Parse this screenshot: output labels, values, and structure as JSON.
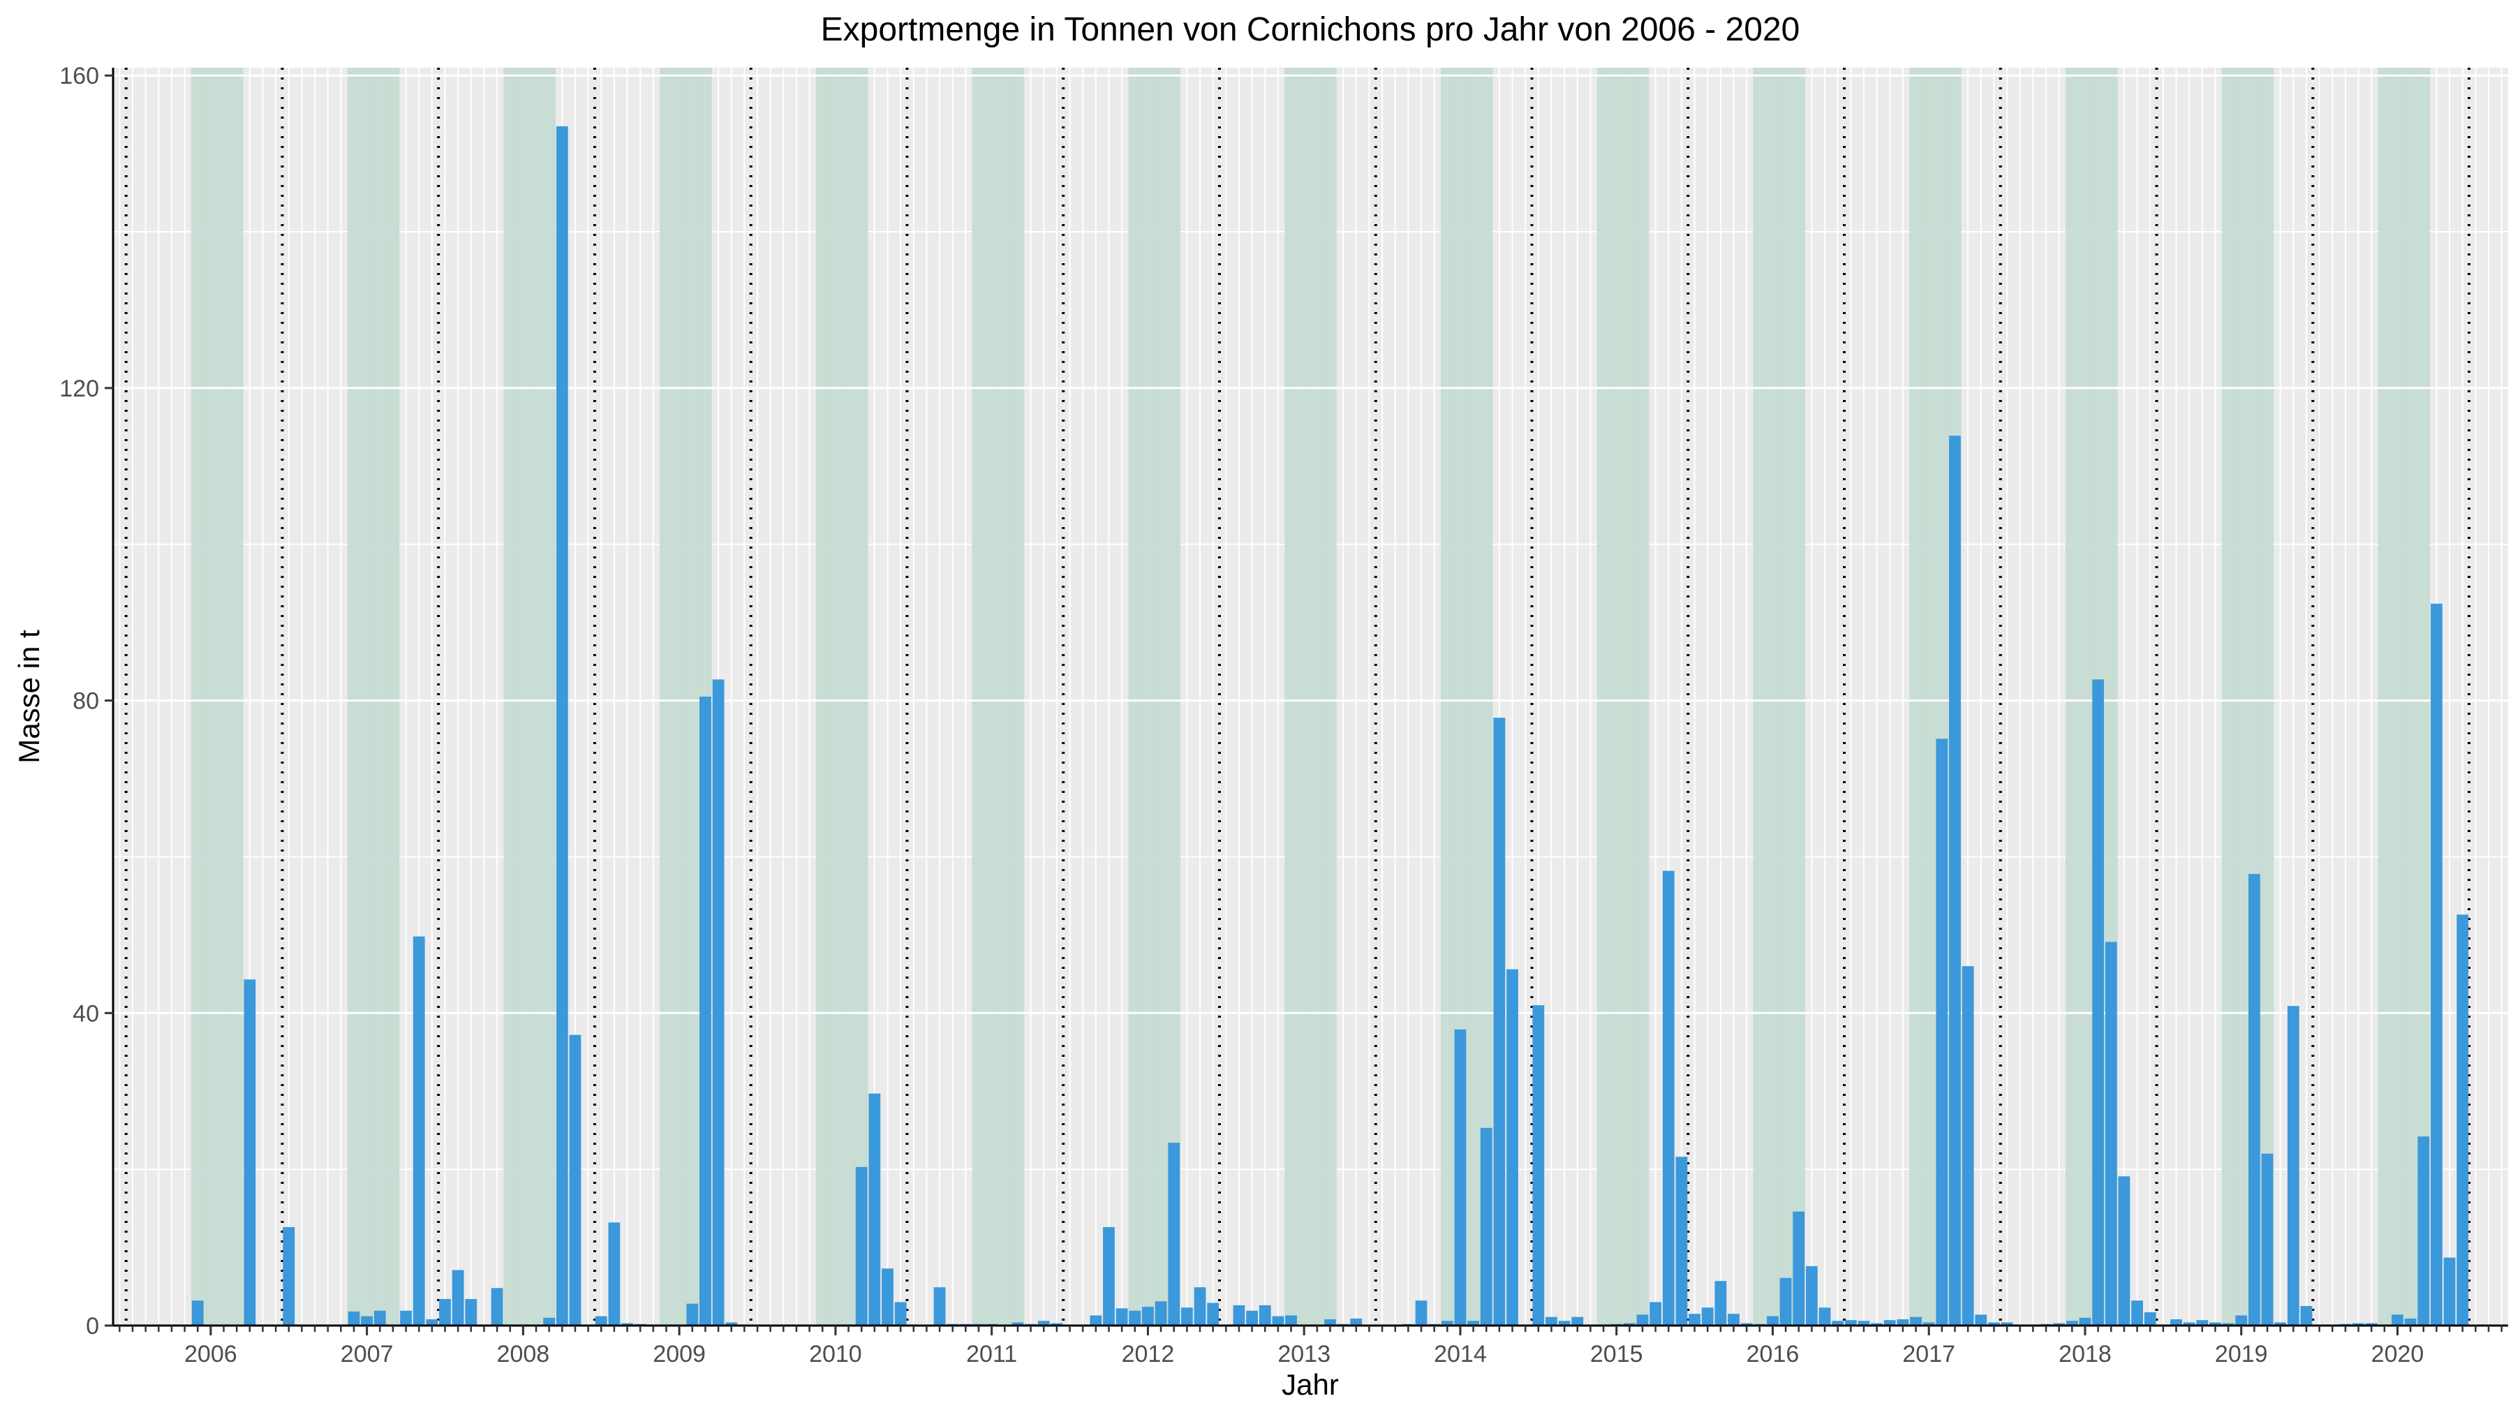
{
  "chart_data": {
    "type": "bar",
    "title": "Exportmenge in Tonnen von Cornichons pro Jahr von 2006 - 2020",
    "xlabel": "Jahr",
    "ylabel": "Masse in t",
    "ylim": [
      0,
      161
    ],
    "y_ticks": [
      0,
      40,
      80,
      120,
      160
    ],
    "x_tick_labels": [
      "2006",
      "2007",
      "2008",
      "2009",
      "2010",
      "2011",
      "2012",
      "2013",
      "2014",
      "2015",
      "2016",
      "2017",
      "2018",
      "2019",
      "2020"
    ],
    "x_start": "2005-06",
    "x_end": "2020-09",
    "interval": "month",
    "grid": true,
    "year_separator_month": "Jun/Jul",
    "highlight_months": [
      "Dec",
      "Jan",
      "Feb",
      "Mar"
    ],
    "colors": {
      "bar": "#3b98db",
      "panel": "#ebebeb",
      "grid": "#ffffff",
      "highlight": "#c4dcd0"
    },
    "x": [
      "2005-06",
      "2005-07",
      "2005-08",
      "2005-09",
      "2005-10",
      "2005-11",
      "2005-12",
      "2006-01",
      "2006-02",
      "2006-03",
      "2006-04",
      "2006-05",
      "2006-06",
      "2006-07",
      "2006-08",
      "2006-09",
      "2006-10",
      "2006-11",
      "2006-12",
      "2007-01",
      "2007-02",
      "2007-03",
      "2007-04",
      "2007-05",
      "2007-06",
      "2007-07",
      "2007-08",
      "2007-09",
      "2007-10",
      "2007-11",
      "2007-12",
      "2008-01",
      "2008-02",
      "2008-03",
      "2008-04",
      "2008-05",
      "2008-06",
      "2008-07",
      "2008-08",
      "2008-09",
      "2008-10",
      "2008-11",
      "2008-12",
      "2009-01",
      "2009-02",
      "2009-03",
      "2009-04",
      "2009-05",
      "2009-06",
      "2009-07",
      "2009-08",
      "2009-09",
      "2009-10",
      "2009-11",
      "2009-12",
      "2010-01",
      "2010-02",
      "2010-03",
      "2010-04",
      "2010-05",
      "2010-06",
      "2010-07",
      "2010-08",
      "2010-09",
      "2010-10",
      "2010-11",
      "2010-12",
      "2011-01",
      "2011-02",
      "2011-03",
      "2011-04",
      "2011-05",
      "2011-06",
      "2011-07",
      "2011-08",
      "2011-09",
      "2011-10",
      "2011-11",
      "2011-12",
      "2012-01",
      "2012-02",
      "2012-03",
      "2012-04",
      "2012-05",
      "2012-06",
      "2012-07",
      "2012-08",
      "2012-09",
      "2012-10",
      "2012-11",
      "2012-12",
      "2013-01",
      "2013-02",
      "2013-03",
      "2013-04",
      "2013-05",
      "2013-06",
      "2013-07",
      "2013-08",
      "2013-09",
      "2013-10",
      "2013-11",
      "2013-12",
      "2014-01",
      "2014-02",
      "2014-03",
      "2014-04",
      "2014-05",
      "2014-06",
      "2014-07",
      "2014-08",
      "2014-09",
      "2014-10",
      "2014-11",
      "2014-12",
      "2015-01",
      "2015-02",
      "2015-03",
      "2015-04",
      "2015-05",
      "2015-06",
      "2015-07",
      "2015-08",
      "2015-09",
      "2015-10",
      "2015-11",
      "2015-12",
      "2016-01",
      "2016-02",
      "2016-03",
      "2016-04",
      "2016-05",
      "2016-06",
      "2016-07",
      "2016-08",
      "2016-09",
      "2016-10",
      "2016-11",
      "2016-12",
      "2017-01",
      "2017-02",
      "2017-03",
      "2017-04",
      "2017-05",
      "2017-06",
      "2017-07",
      "2017-08",
      "2017-09",
      "2017-10",
      "2017-11",
      "2017-12",
      "2018-01",
      "2018-02",
      "2018-03",
      "2018-04",
      "2018-05",
      "2018-06",
      "2018-07",
      "2018-08",
      "2018-09",
      "2018-10",
      "2018-11",
      "2018-12",
      "2019-01",
      "2019-02",
      "2019-03",
      "2019-04",
      "2019-05",
      "2019-06",
      "2019-07",
      "2019-08",
      "2019-09",
      "2019-10",
      "2019-11",
      "2019-12",
      "2020-01",
      "2020-02",
      "2020-03",
      "2020-04",
      "2020-05",
      "2020-06",
      "2020-07",
      "2020-08",
      "2020-09"
    ],
    "values": [
      0,
      0,
      0,
      0,
      0,
      0,
      3.2,
      0,
      0,
      0,
      44.3,
      0,
      0,
      12.6,
      0,
      0,
      0,
      0,
      1.8,
      1.2,
      1.9,
      0,
      1.9,
      49.8,
      0.8,
      3.4,
      7.1,
      3.4,
      0,
      4.8,
      0,
      0,
      0,
      1.0,
      153.5,
      37.2,
      0,
      1.2,
      13.2,
      0.3,
      0.2,
      0,
      0,
      0,
      2.8,
      80.5,
      82.7,
      0.4,
      0,
      0,
      0,
      0,
      0,
      0,
      0,
      0,
      0,
      20.3,
      29.7,
      7.3,
      3.0,
      0,
      0,
      4.9,
      0.2,
      0.2,
      0.2,
      0.2,
      0,
      0.4,
      0.2,
      0.6,
      0.3,
      0,
      0,
      1.3,
      12.6,
      2.2,
      1.9,
      2.4,
      3.1,
      23.4,
      2.3,
      4.9,
      2.9,
      0,
      2.6,
      1.9,
      2.6,
      1.2,
      1.3,
      0,
      0,
      0.8,
      0.2,
      0.9,
      0,
      0,
      0,
      0.2,
      3.2,
      0.2,
      0.6,
      37.9,
      0.6,
      25.3,
      77.8,
      45.6,
      0,
      41.0,
      1.1,
      0.6,
      1.1,
      0,
      0,
      0.2,
      0.3,
      1.4,
      3.0,
      58.2,
      21.6,
      1.5,
      2.3,
      5.7,
      1.5,
      0.3,
      0.2,
      1.2,
      6.1,
      14.6,
      7.6,
      2.3,
      0.6,
      0.7,
      0.6,
      0.3,
      0.7,
      0.8,
      1.1,
      0.4,
      75.1,
      113.9,
      46.0,
      1.4,
      0.4,
      0.4,
      0,
      0,
      0.2,
      0.3,
      0.6,
      1.0,
      82.7,
      49.1,
      19.1,
      3.2,
      1.7,
      0,
      0.8,
      0.4,
      0.7,
      0.4,
      0.3,
      1.3,
      57.8,
      22.0,
      0.4,
      40.9,
      2.5,
      0,
      0,
      0.2,
      0.3,
      0.3,
      0,
      1.4,
      0.9,
      24.2,
      92.4,
      8.7,
      52.6,
      0,
      0,
      0
    ]
  }
}
